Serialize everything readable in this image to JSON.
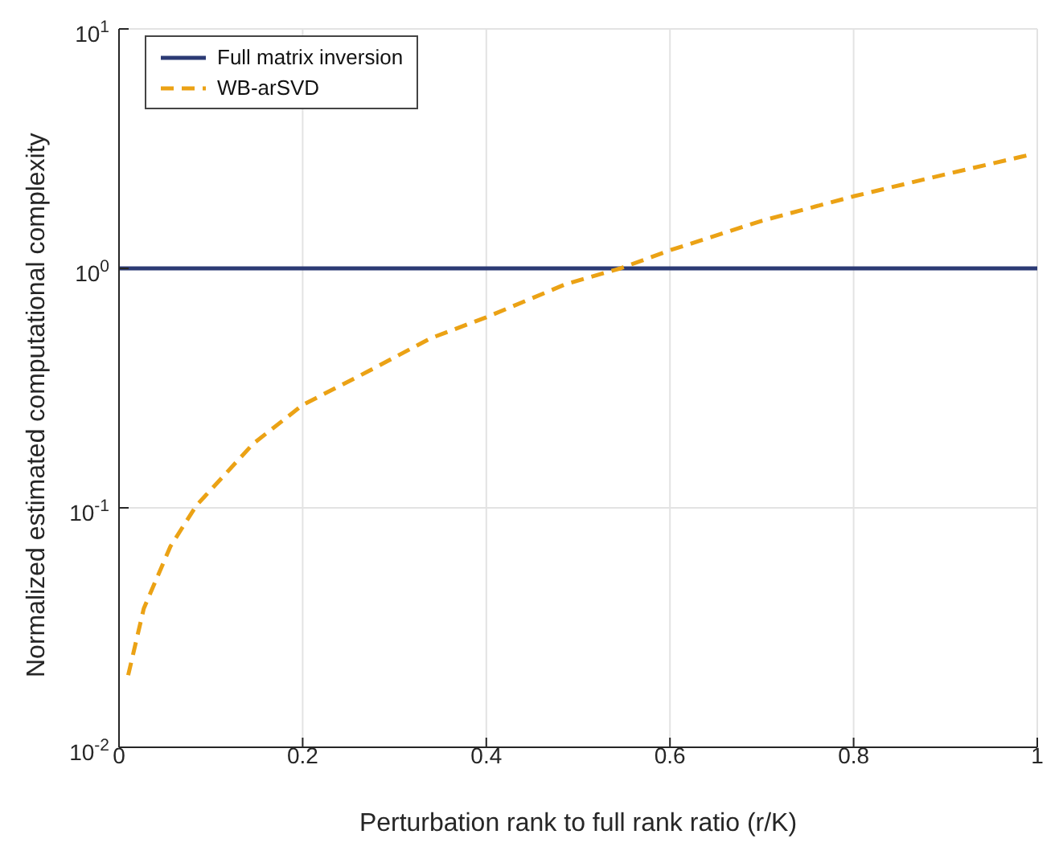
{
  "chart_data": {
    "type": "line",
    "xlabel": "Perturbation rank to full rank ratio (r/K)",
    "ylabel": "Normalized estimated computational complexity",
    "series": [
      {
        "name": "Full matrix inversion",
        "color": "#2b3a74",
        "line_style": "solid",
        "x": [
          0,
          1
        ],
        "values": [
          1,
          1
        ]
      },
      {
        "name": "WB-arSVD",
        "color": "#eba215",
        "line_style": "dashed",
        "x": [
          0.01,
          0.027,
          0.056,
          0.084,
          0.146,
          0.2,
          0.271,
          0.339,
          0.4,
          0.487,
          0.546,
          0.6,
          0.7,
          0.8,
          0.894,
          0.99
        ],
        "values": [
          0.02,
          0.038,
          0.069,
          0.102,
          0.185,
          0.269,
          0.371,
          0.51,
          0.625,
          0.861,
          1.0,
          1.19,
          1.58,
          2.0,
          2.44,
          2.97
        ]
      }
    ],
    "xlim": [
      0,
      1
    ],
    "xticks": [
      0,
      0.2,
      0.4,
      0.6,
      0.8,
      1
    ],
    "ylim": [
      0.01,
      10
    ],
    "yticks": [
      {
        "value": 0.01,
        "label": "10$^{-2}$"
      },
      {
        "value": 0.1,
        "label": "10$^{-1}$"
      },
      {
        "value": 1,
        "label": "10$^{0}$"
      },
      {
        "value": 10,
        "label": "10$^{1}$"
      }
    ],
    "log": "y",
    "grid": true,
    "legend": "top left",
    "marker": "none"
  }
}
